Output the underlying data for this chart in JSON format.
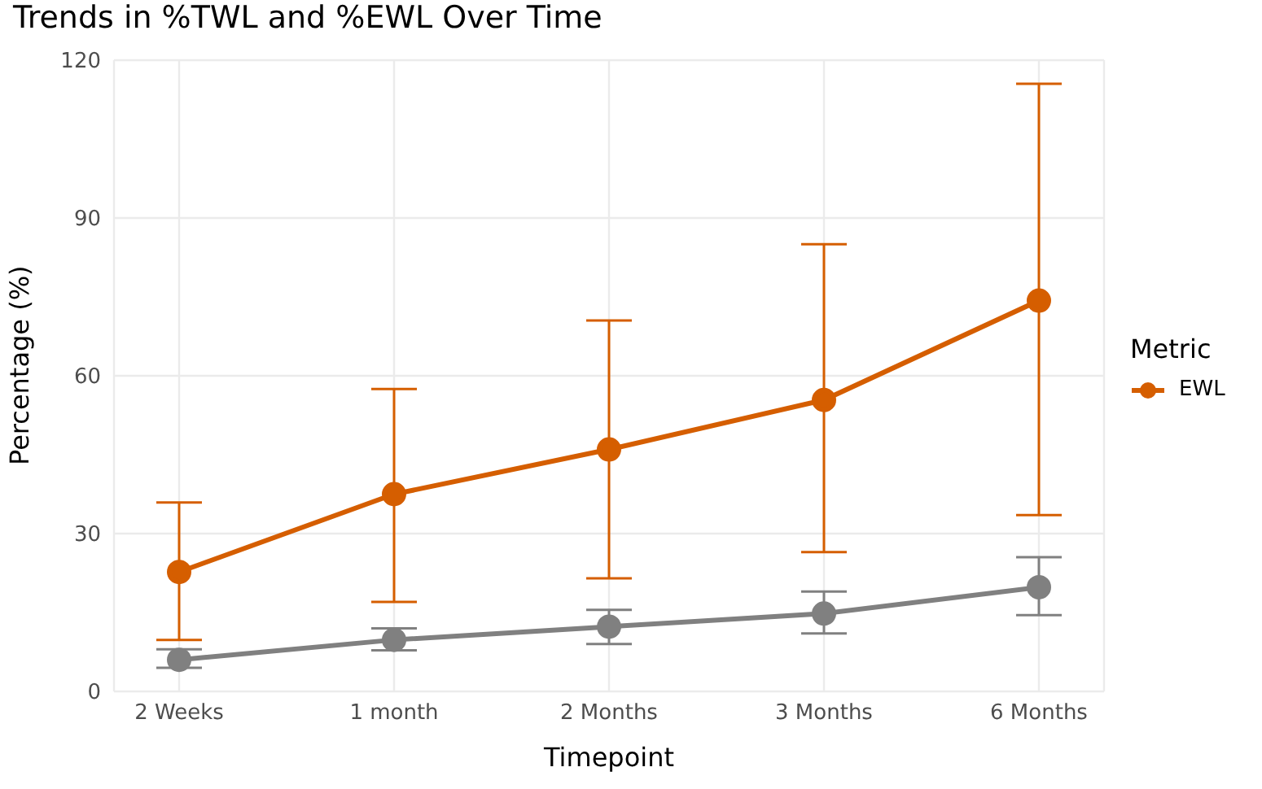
{
  "chart_data": {
    "type": "line",
    "title": "Trends in %TWL and %EWL Over Time",
    "xlabel": "Timepoint",
    "ylabel": "Percentage (%)",
    "legend_title": "Metric",
    "categories": [
      "2 Weeks",
      "1 month",
      "2 Months",
      "3 Months",
      "6 Months"
    ],
    "series": [
      {
        "name": "EWL",
        "color": "#d55e00",
        "values": [
          22.7,
          37.5,
          46,
          55.4,
          74.3
        ],
        "errors": [
          [
            9.8,
            35.9
          ],
          [
            17,
            57.5
          ],
          [
            21.5,
            70.5
          ],
          [
            26.5,
            85
          ],
          [
            33.5,
            115.5
          ]
        ]
      },
      {
        "color": "#808080",
        "values": [
          6,
          9.8,
          12.3,
          14.8,
          19.8
        ],
        "errors": [
          [
            4.5,
            8
          ],
          [
            7.8,
            12
          ],
          [
            9,
            15.5
          ],
          [
            11,
            19
          ],
          [
            14.5,
            25.5
          ]
        ]
      }
    ],
    "ylim": [
      0,
      120
    ],
    "yticks": [
      0,
      30,
      60,
      90,
      120
    ],
    "grid": true,
    "legend": "right",
    "marker": "circle",
    "line_style": "solid"
  }
}
